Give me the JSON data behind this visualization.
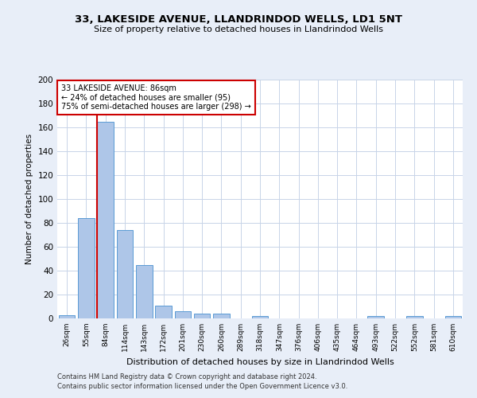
{
  "title_line1": "33, LAKESIDE AVENUE, LLANDRINDOD WELLS, LD1 5NT",
  "title_line2": "Size of property relative to detached houses in Llandrindod Wells",
  "xlabel": "Distribution of detached houses by size in Llandrindod Wells",
  "ylabel": "Number of detached properties",
  "categories": [
    "26sqm",
    "55sqm",
    "84sqm",
    "114sqm",
    "143sqm",
    "172sqm",
    "201sqm",
    "230sqm",
    "260sqm",
    "289sqm",
    "318sqm",
    "347sqm",
    "376sqm",
    "406sqm",
    "435sqm",
    "464sqm",
    "493sqm",
    "522sqm",
    "552sqm",
    "581sqm",
    "610sqm"
  ],
  "values": [
    3,
    84,
    165,
    74,
    45,
    11,
    6,
    4,
    4,
    0,
    2,
    0,
    0,
    0,
    0,
    0,
    2,
    0,
    2,
    0,
    2
  ],
  "bar_color": "#aec6e8",
  "bar_edge_color": "#5b9bd5",
  "annotation_text_line1": "33 LAKESIDE AVENUE: 86sqm",
  "annotation_text_line2": "← 24% of detached houses are smaller (95)",
  "annotation_text_line3": "75% of semi-detached houses are larger (298) →",
  "annotation_box_color": "#ffffff",
  "annotation_box_edge_color": "#cc0000",
  "vline_color": "#cc0000",
  "vline_x": 2,
  "grid_color": "#c8d4e8",
  "footnote1": "Contains HM Land Registry data © Crown copyright and database right 2024.",
  "footnote2": "Contains public sector information licensed under the Open Government Licence v3.0.",
  "ylim": [
    0,
    200
  ],
  "yticks": [
    0,
    20,
    40,
    60,
    80,
    100,
    120,
    140,
    160,
    180,
    200
  ],
  "bg_color": "#e8eef8",
  "plot_bg_color": "#ffffff"
}
